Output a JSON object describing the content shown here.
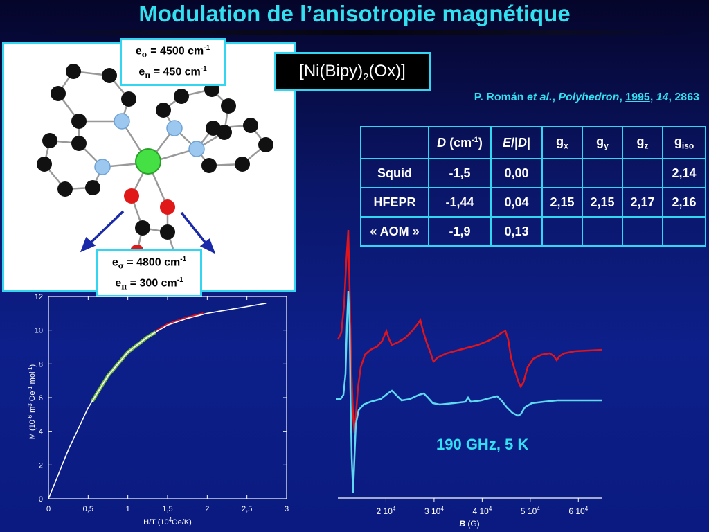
{
  "title": "Modulation de l’anisotropie magnétique",
  "param_top": {
    "sigma_label": "e",
    "sigma_sub": "σ",
    "sigma_value": " = 4500 cm",
    "sigma_exp": "-1",
    "pi_label": "e",
    "pi_sub": "π",
    "pi_value": " = 450 cm",
    "pi_exp": "-1"
  },
  "param_bottom": {
    "sigma_label": "e",
    "sigma_sub": "σ",
    "sigma_value": " = 4800 cm",
    "sigma_exp": "-1",
    "pi_label": "e",
    "pi_sub": "π",
    "pi_value": " = 300 cm",
    "pi_exp": "-1"
  },
  "formula": {
    "prefix": "[Ni(Bipy)",
    "sub": "2",
    "suffix": "(Ox)]"
  },
  "citation": {
    "authors": "P. Román ",
    "etal": "et al.",
    "journal": "Polyhedron",
    "year": "1995",
    "volume": "14",
    "pages": ", 2863"
  },
  "table": {
    "headers": {
      "D": "D",
      "D_unit": " (cm",
      "D_exp": "-1",
      "D_close": ")",
      "E": "E",
      "E_sep": "/|",
      "E_D": "D",
      "E_close": "|",
      "gx": "g",
      "gx_sub": "x",
      "gy": "g",
      "gy_sub": "y",
      "gz": "g",
      "gz_sub": "z",
      "giso": "g",
      "giso_sub": "iso"
    },
    "rows": [
      {
        "label": "Squid",
        "D": "-1,5",
        "ED": "0,00",
        "gx": "",
        "gy": "",
        "gz": "",
        "giso": "2,14"
      },
      {
        "label": "HFEPR",
        "D": "-1,44",
        "ED": "0,04",
        "gx": "2,15",
        "gy": "2,15",
        "gz": "2,17",
        "giso": "2,16"
      },
      {
        "label": "« AOM »",
        "D": "-1,9",
        "ED": "0,13",
        "gx": "",
        "gy": "",
        "gz": "",
        "giso": ""
      }
    ]
  },
  "magnetization_plot": {
    "y_ticks": [
      "0",
      "2",
      "4",
      "6",
      "8",
      "10",
      "12"
    ],
    "x_ticks": [
      "0",
      "0,5",
      "1",
      "1,5",
      "2",
      "2,5",
      "3"
    ],
    "ylabel": "M  (10-6 m3 Oe-1 mol-1)",
    "ylabel_parts": {
      "a": "M  (10",
      "b": "-6",
      "c": " m",
      "d": "3",
      "e": " Oe",
      "f": "-1",
      "g": " mol",
      "h": "-1",
      "i": ")"
    },
    "xlabel_parts": {
      "a": "H/T  (10",
      "b": "4",
      "c": "Oe/K)"
    }
  },
  "epr_plot": {
    "x_ticks": [
      {
        "base": "2 10",
        "exp": "4"
      },
      {
        "base": "3 10",
        "exp": "4"
      },
      {
        "base": "4 10",
        "exp": "4"
      },
      {
        "base": "5 10",
        "exp": "4"
      },
      {
        "base": "6 10",
        "exp": "4"
      }
    ],
    "xlabel_var": "B",
    "xlabel_unit": "  (G)",
    "freq_label": "190 GHz, 5 K"
  },
  "colors": {
    "accent": "#33e0f0",
    "frame": "#33d6f0",
    "red_trace": "#e0141c",
    "cyan_trace": "#5fd8f0",
    "green_fit": "#6fb83a"
  },
  "chart_data": [
    {
      "type": "line",
      "title": "",
      "xlabel": "H/T (10^4 Oe/K)",
      "ylabel": "M (10^-6 m^3 Oe^-1 mol^-1)",
      "xlim": [
        0,
        3
      ],
      "ylim": [
        0,
        12
      ],
      "x": [
        0,
        0.25,
        0.5,
        0.75,
        1.0,
        1.25,
        1.5,
        1.75,
        2.0,
        2.25,
        2.5,
        2.75
      ],
      "series": [
        {
          "values": [
            0,
            2.9,
            5.4,
            7.3,
            8.7,
            9.6,
            10.3,
            10.7,
            11.0,
            11.2,
            11.4,
            11.6
          ]
        }
      ],
      "grid": false
    },
    {
      "type": "line",
      "title": "",
      "xlabel": "B (G)",
      "ylabel": "",
      "xlim": [
        10000,
        65000
      ],
      "x": [
        10000,
        12500,
        14000,
        15000,
        17500,
        20000,
        22500,
        25000,
        27500,
        30000,
        32500,
        35000,
        40000,
        45000,
        47500,
        50000,
        52500,
        55000,
        60000,
        65000
      ],
      "grid": false
    }
  ]
}
